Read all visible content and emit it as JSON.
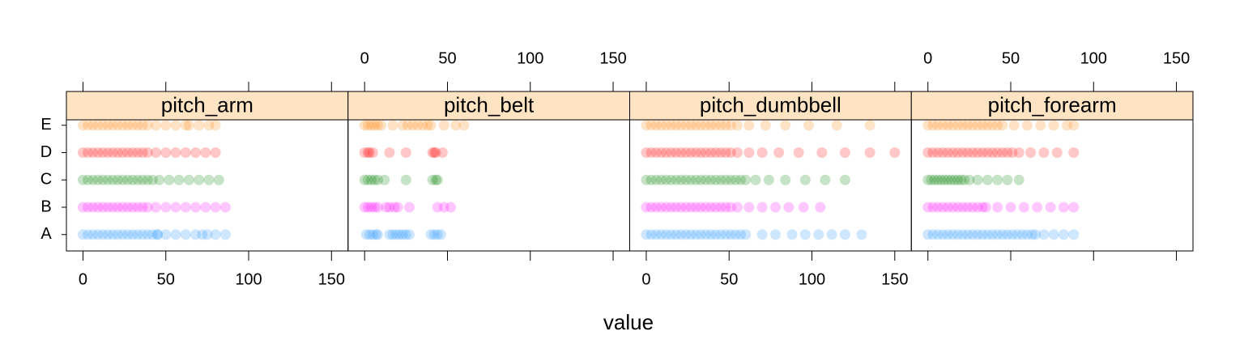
{
  "chart_data": {
    "type": "strip",
    "xlabel": "value",
    "categories": [
      "A",
      "B",
      "C",
      "D",
      "E"
    ],
    "colors": [
      "#1e90ff",
      "#ff00ff",
      "#008000",
      "#ff0000",
      "#ff7f00"
    ],
    "xlim": [
      -10,
      160
    ],
    "xticks": [
      0,
      50,
      100,
      150
    ],
    "panels": [
      {
        "title": "pitch_arm",
        "values": [
          [
            0,
            3,
            6,
            9,
            12,
            15,
            18,
            21,
            24,
            27,
            30,
            33,
            36,
            39,
            42,
            45,
            45,
            50,
            56,
            62,
            68,
            72,
            75,
            80,
            86
          ],
          [
            0,
            3,
            6,
            9,
            12,
            15,
            18,
            21,
            24,
            27,
            30,
            33,
            36,
            39,
            44,
            50,
            56,
            62,
            68,
            74,
            80,
            86
          ],
          [
            0,
            3,
            6,
            9,
            12,
            15,
            18,
            21,
            24,
            27,
            30,
            33,
            36,
            39,
            42,
            46,
            52,
            58,
            64,
            70,
            76,
            82
          ],
          [
            0,
            3,
            6,
            9,
            12,
            15,
            18,
            21,
            24,
            27,
            30,
            33,
            36,
            39,
            44,
            50,
            56,
            62,
            68,
            74,
            80
          ],
          [
            0,
            3,
            6,
            9,
            12,
            15,
            18,
            21,
            24,
            27,
            30,
            33,
            36,
            39,
            44,
            50,
            56,
            62,
            64,
            70,
            76,
            80
          ]
        ]
      },
      {
        "title": "pitch_belt",
        "values": [
          [
            1,
            3,
            5,
            7,
            8,
            15,
            17,
            19,
            21,
            23,
            25,
            27,
            40,
            42,
            44,
            46
          ],
          [
            0,
            2,
            4,
            6,
            8,
            13,
            15,
            18,
            20,
            27,
            44,
            48,
            52
          ],
          [
            0,
            2,
            4,
            6,
            8,
            12,
            25,
            41,
            43,
            44
          ],
          [
            0,
            2,
            3,
            5,
            15,
            25,
            41,
            42,
            43,
            47
          ],
          [
            0,
            2,
            4,
            6,
            8,
            10,
            17,
            23,
            26,
            29,
            32,
            35,
            38,
            40,
            48,
            55,
            60
          ]
        ]
      },
      {
        "title": "pitch_dumbbell",
        "values": [
          [
            0,
            3,
            6,
            9,
            12,
            15,
            18,
            21,
            24,
            27,
            30,
            33,
            36,
            39,
            42,
            45,
            48,
            51,
            54,
            57,
            60,
            70,
            78,
            88,
            96,
            104,
            112,
            120,
            130
          ],
          [
            0,
            3,
            6,
            9,
            12,
            15,
            18,
            21,
            24,
            27,
            30,
            33,
            36,
            39,
            42,
            45,
            48,
            51,
            55,
            62,
            70,
            78,
            86,
            95,
            105
          ],
          [
            0,
            3,
            6,
            9,
            12,
            15,
            18,
            21,
            24,
            27,
            30,
            33,
            36,
            39,
            42,
            45,
            48,
            51,
            54,
            57,
            60,
            66,
            74,
            84,
            96,
            108,
            120
          ],
          [
            0,
            3,
            6,
            9,
            12,
            15,
            18,
            21,
            24,
            27,
            30,
            33,
            36,
            39,
            42,
            45,
            48,
            51,
            55,
            62,
            70,
            80,
            92,
            106,
            120,
            135,
            150
          ],
          [
            0,
            3,
            6,
            9,
            12,
            15,
            18,
            21,
            24,
            27,
            30,
            33,
            36,
            39,
            42,
            45,
            48,
            51,
            55,
            62,
            72,
            84,
            98,
            115,
            135
          ]
        ]
      },
      {
        "title": "pitch_forearm",
        "values": [
          [
            0,
            3,
            6,
            9,
            12,
            15,
            18,
            21,
            24,
            27,
            30,
            33,
            36,
            39,
            42,
            45,
            48,
            51,
            54,
            57,
            60,
            63,
            65,
            70,
            76,
            82,
            88
          ],
          [
            0,
            3,
            6,
            9,
            12,
            15,
            18,
            21,
            24,
            27,
            30,
            33,
            35,
            42,
            50,
            58,
            66,
            74,
            82,
            88
          ],
          [
            0,
            2,
            4,
            6,
            8,
            10,
            12,
            14,
            16,
            18,
            20,
            22,
            25,
            30,
            36,
            42,
            48,
            55
          ],
          [
            0,
            3,
            6,
            9,
            12,
            15,
            18,
            21,
            24,
            27,
            30,
            33,
            36,
            39,
            42,
            45,
            48,
            51,
            55,
            62,
            70,
            78,
            88
          ],
          [
            0,
            3,
            6,
            9,
            12,
            15,
            18,
            21,
            24,
            27,
            30,
            33,
            36,
            39,
            42,
            45,
            52,
            60,
            68,
            76,
            84,
            88
          ]
        ]
      }
    ]
  }
}
